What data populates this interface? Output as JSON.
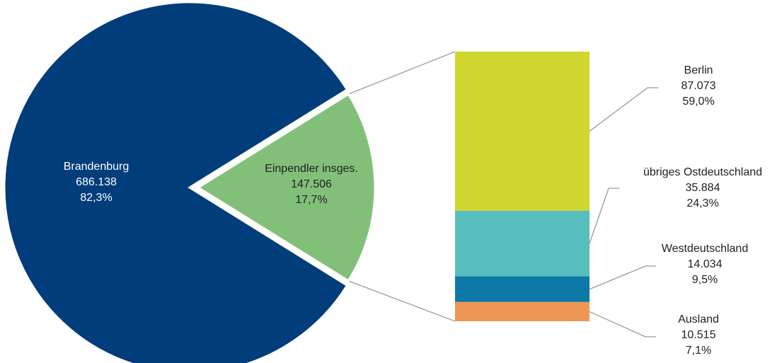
{
  "chart_data": {
    "type": "bar-of-pie",
    "pie": {
      "slices": [
        {
          "label": "Brandenburg",
          "value": "686.138",
          "percent": "82,3%",
          "numeric": 686138,
          "share": 0.823,
          "color": "#003d7a"
        },
        {
          "label": "Einpendler insges.",
          "value": "147.506",
          "percent": "17,7%",
          "numeric": 147506,
          "share": 0.177,
          "color": "#82c07a"
        }
      ]
    },
    "bar": {
      "segments": [
        {
          "label": "Berlin",
          "value": "87.073",
          "percent": "59,0%",
          "numeric": 87073,
          "share": 0.59,
          "color": "#cfd62e"
        },
        {
          "label": "übriges Ostdeutschland",
          "value": "35.884",
          "percent": "24,3%",
          "numeric": 35884,
          "share": 0.243,
          "color": "#57bdbd"
        },
        {
          "label": "Westdeutschland",
          "value": "14.034",
          "percent": "9,5%",
          "numeric": 14034,
          "share": 0.095,
          "color": "#0c79a7"
        },
        {
          "label": "Ausland",
          "value": "10.515",
          "percent": "7,1%",
          "numeric": 10515,
          "share": 0.071,
          "color": "#ee9654"
        }
      ]
    }
  }
}
